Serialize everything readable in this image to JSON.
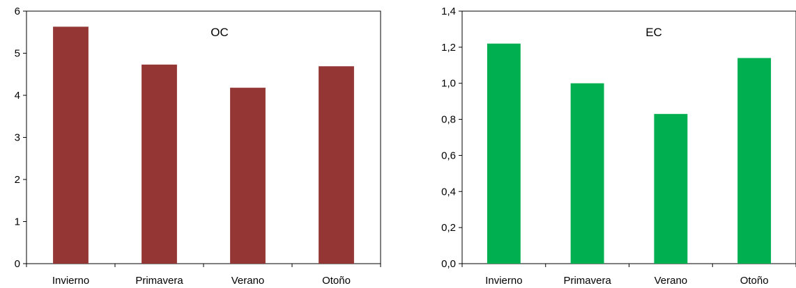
{
  "chart_data": [
    {
      "type": "bar",
      "title": "OC",
      "categories": [
        "Invierno",
        "Primavera",
        "Verano",
        "Otoño"
      ],
      "values": [
        5.63,
        4.73,
        4.18,
        4.69
      ],
      "ylim": [
        0,
        6
      ],
      "yticks": [
        "0",
        "1",
        "2",
        "3",
        "4",
        "5",
        "6"
      ],
      "xlabel": "",
      "ylabel": "",
      "grid": false,
      "color": "#943634"
    },
    {
      "type": "bar",
      "title": "EC",
      "categories": [
        "Invierno",
        "Primavera",
        "Verano",
        "Otoño"
      ],
      "values": [
        1.22,
        1.0,
        0.83,
        1.14
      ],
      "ylim": [
        0,
        1.4
      ],
      "yticks": [
        "0,0",
        "0,2",
        "0,4",
        "0,6",
        "0,8",
        "1,0",
        "1,2",
        "1,4"
      ],
      "xlabel": "",
      "ylabel": "",
      "grid": false,
      "color": "#00B050"
    }
  ]
}
